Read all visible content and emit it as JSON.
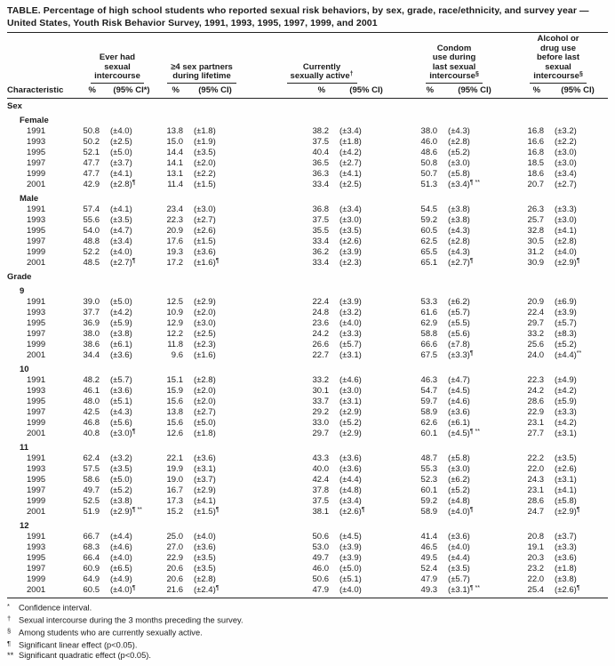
{
  "title": "TABLE.  Percentage of high school students who reported sexual risk behaviors, by sex, grade, race/ethnicity, and survey year —\nUnited States, Youth Risk Behavior Survey, 1991, 1993, 1995, 1997, 1999,  and 2001",
  "table": {
    "characteristic_label": "Characteristic",
    "groups": [
      {
        "label": "Ever had\nsexual\nintercourse",
        "sup": "",
        "pct_label": "%",
        "ci_label": "(95% CI*)"
      },
      {
        "label": "≥4 sex partners\nduring lifetime",
        "sup": "",
        "pct_label": "%",
        "ci_label": "(95% CI)"
      },
      {
        "label": "Currently\nsexually active",
        "sup": "†",
        "pct_label": "%",
        "ci_label": "(95% CI)"
      },
      {
        "label": "Condom\nuse during\nlast sexual\nintercourse",
        "sup": "§",
        "pct_label": "%",
        "ci_label": "(95% CI)"
      },
      {
        "label": "Alcohol or\ndrug use\nbefore last\nsexual\nintercourse",
        "sup": "§",
        "pct_label": "%",
        "ci_label": "(95% CI)"
      }
    ],
    "sections": [
      {
        "label": "Sex",
        "subsections": [
          {
            "label": "Female",
            "rows": [
              {
                "year": "1991",
                "cells": [
                  "50.8",
                  "(±4.0)",
                  "13.8",
                  "(±1.8)",
                  "38.2",
                  "(±3.4)",
                  "38.0",
                  "(±4.3)",
                  "16.8",
                  "(±3.2)"
                ]
              },
              {
                "year": "1993",
                "cells": [
                  "50.2",
                  "(±2.5)",
                  "15.0",
                  "(±1.9)",
                  "37.5",
                  "(±1.8)",
                  "46.0",
                  "(±2.8)",
                  "16.6",
                  "(±2.2)"
                ]
              },
              {
                "year": "1995",
                "cells": [
                  "52.1",
                  "(±5.0)",
                  "14.4",
                  "(±3.5)",
                  "40.4",
                  "(±4.2)",
                  "48.6",
                  "(±5.2)",
                  "16.8",
                  "(±3.0)"
                ]
              },
              {
                "year": "1997",
                "cells": [
                  "47.7",
                  "(±3.7)",
                  "14.1",
                  "(±2.0)",
                  "36.5",
                  "(±2.7)",
                  "50.8",
                  "(±3.0)",
                  "18.5",
                  "(±3.0)"
                ]
              },
              {
                "year": "1999",
                "cells": [
                  "47.7",
                  "(±4.1)",
                  "13.1",
                  "(±2.2)",
                  "36.3",
                  "(±4.1)",
                  "50.7",
                  "(±5.8)",
                  "18.6",
                  "(±3.4)"
                ]
              },
              {
                "year": "2001",
                "cells": [
                  "42.9",
                  "(±2.8)¶",
                  "11.4",
                  "(±1.5)",
                  "33.4",
                  "(±2.5)",
                  "51.3",
                  "(±3.4)¶ **",
                  "20.7",
                  "(±2.7)"
                ]
              }
            ]
          },
          {
            "label": "Male",
            "rows": [
              {
                "year": "1991",
                "cells": [
                  "57.4",
                  "(±4.1)",
                  "23.4",
                  "(±3.0)",
                  "36.8",
                  "(±3.4)",
                  "54.5",
                  "(±3.8)",
                  "26.3",
                  "(±3.3)"
                ]
              },
              {
                "year": "1993",
                "cells": [
                  "55.6",
                  "(±3.5)",
                  "22.3",
                  "(±2.7)",
                  "37.5",
                  "(±3.0)",
                  "59.2",
                  "(±3.8)",
                  "25.7",
                  "(±3.0)"
                ]
              },
              {
                "year": "1995",
                "cells": [
                  "54.0",
                  "(±4.7)",
                  "20.9",
                  "(±2.6)",
                  "35.5",
                  "(±3.5)",
                  "60.5",
                  "(±4.3)",
                  "32.8",
                  "(±4.1)"
                ]
              },
              {
                "year": "1997",
                "cells": [
                  "48.8",
                  "(±3.4)",
                  "17.6",
                  "(±1.5)",
                  "33.4",
                  "(±2.6)",
                  "62.5",
                  "(±2.8)",
                  "30.5",
                  "(±2.8)"
                ]
              },
              {
                "year": "1999",
                "cells": [
                  "52.2",
                  "(±4.0)",
                  "19.3",
                  "(±3.6)",
                  "36.2",
                  "(±3.9)",
                  "65.5",
                  "(±4.3)",
                  "31.2",
                  "(±4.0)"
                ]
              },
              {
                "year": "2001",
                "cells": [
                  "48.5",
                  "(±2.7)¶",
                  "17.2",
                  "(±1.6)¶",
                  "33.4",
                  "(±2.3)",
                  "65.1",
                  "(±2.7)¶",
                  "30.9",
                  "(±2.9)¶"
                ]
              }
            ]
          }
        ]
      },
      {
        "label": "Grade",
        "subsections": [
          {
            "label": "9",
            "rows": [
              {
                "year": "1991",
                "cells": [
                  "39.0",
                  "(±5.0)",
                  "12.5",
                  "(±2.9)",
                  "22.4",
                  "(±3.9)",
                  "53.3",
                  "(±6.2)",
                  "20.9",
                  "(±6.9)"
                ]
              },
              {
                "year": "1993",
                "cells": [
                  "37.7",
                  "(±4.2)",
                  "10.9",
                  "(±2.0)",
                  "24.8",
                  "(±3.2)",
                  "61.6",
                  "(±5.7)",
                  "22.4",
                  "(±3.9)"
                ]
              },
              {
                "year": "1995",
                "cells": [
                  "36.9",
                  "(±5.9)",
                  "12.9",
                  "(±3.0)",
                  "23.6",
                  "(±4.0)",
                  "62.9",
                  "(±5.5)",
                  "29.7",
                  "(±5.7)"
                ]
              },
              {
                "year": "1997",
                "cells": [
                  "38.0",
                  "(±3.8)",
                  "12.2",
                  "(±2.5)",
                  "24.2",
                  "(±3.3)",
                  "58.8",
                  "(±5.6)",
                  "33.2",
                  "(±8.3)"
                ]
              },
              {
                "year": "1999",
                "cells": [
                  "38.6",
                  "(±6.1)",
                  "11.8",
                  "(±2.3)",
                  "26.6",
                  "(±5.7)",
                  "66.6",
                  "(±7.8)",
                  "25.6",
                  "(±5.2)"
                ]
              },
              {
                "year": "2001",
                "cells": [
                  "34.4",
                  "(±3.6)",
                  "9.6",
                  "(±1.6)",
                  "22.7",
                  "(±3.1)",
                  "67.5",
                  "(±3.3)¶",
                  "24.0",
                  "(±4.4)**"
                ]
              }
            ]
          },
          {
            "label": "10",
            "rows": [
              {
                "year": "1991",
                "cells": [
                  "48.2",
                  "(±5.7)",
                  "15.1",
                  "(±2.8)",
                  "33.2",
                  "(±4.6)",
                  "46.3",
                  "(±4.7)",
                  "22.3",
                  "(±4.9)"
                ]
              },
              {
                "year": "1993",
                "cells": [
                  "46.1",
                  "(±3.6)",
                  "15.9",
                  "(±2.0)",
                  "30.1",
                  "(±3.0)",
                  "54.7",
                  "(±4.5)",
                  "24.2",
                  "(±4.2)"
                ]
              },
              {
                "year": "1995",
                "cells": [
                  "48.0",
                  "(±5.1)",
                  "15.6",
                  "(±2.0)",
                  "33.7",
                  "(±3.1)",
                  "59.7",
                  "(±4.6)",
                  "28.6",
                  "(±5.9)"
                ]
              },
              {
                "year": "1997",
                "cells": [
                  "42.5",
                  "(±4.3)",
                  "13.8",
                  "(±2.7)",
                  "29.2",
                  "(±2.9)",
                  "58.9",
                  "(±3.6)",
                  "22.9",
                  "(±3.3)"
                ]
              },
              {
                "year": "1999",
                "cells": [
                  "46.8",
                  "(±5.6)",
                  "15.6",
                  "(±5.0)",
                  "33.0",
                  "(±5.2)",
                  "62.6",
                  "(±6.1)",
                  "23.1",
                  "(±4.2)"
                ]
              },
              {
                "year": "2001",
                "cells": [
                  "40.8",
                  "(±3.0)¶",
                  "12.6",
                  "(±1.8)",
                  "29.7",
                  "(±2.9)",
                  "60.1",
                  "(±4.5)¶ **",
                  "27.7",
                  "(±3.1)"
                ]
              }
            ]
          },
          {
            "label": "11",
            "rows": [
              {
                "year": "1991",
                "cells": [
                  "62.4",
                  "(±3.2)",
                  "22.1",
                  "(±3.6)",
                  "43.3",
                  "(±3.6)",
                  "48.7",
                  "(±5.8)",
                  "22.2",
                  "(±3.5)"
                ]
              },
              {
                "year": "1993",
                "cells": [
                  "57.5",
                  "(±3.5)",
                  "19.9",
                  "(±3.1)",
                  "40.0",
                  "(±3.6)",
                  "55.3",
                  "(±3.0)",
                  "22.0",
                  "(±2.6)"
                ]
              },
              {
                "year": "1995",
                "cells": [
                  "58.6",
                  "(±5.0)",
                  "19.0",
                  "(±3.7)",
                  "42.4",
                  "(±4.4)",
                  "52.3",
                  "(±6.2)",
                  "24.3",
                  "(±3.1)"
                ]
              },
              {
                "year": "1997",
                "cells": [
                  "49.7",
                  "(±5.2)",
                  "16.7",
                  "(±2.9)",
                  "37.8",
                  "(±4.8)",
                  "60.1",
                  "(±5.2)",
                  "23.1",
                  "(±4.1)"
                ]
              },
              {
                "year": "1999",
                "cells": [
                  "52.5",
                  "(±3.8)",
                  "17.3",
                  "(±4.1)",
                  "37.5",
                  "(±3.4)",
                  "59.2",
                  "(±4.8)",
                  "28.6",
                  "(±5.8)"
                ]
              },
              {
                "year": "2001",
                "cells": [
                  "51.9",
                  "(±2.9)¶ **",
                  "15.2",
                  "(±1.5)¶",
                  "38.1",
                  "(±2.6)¶",
                  "58.9",
                  "(±4.0)¶",
                  "24.7",
                  "(±2.9)¶"
                ]
              }
            ]
          },
          {
            "label": "12",
            "rows": [
              {
                "year": "1991",
                "cells": [
                  "66.7",
                  "(±4.4)",
                  "25.0",
                  "(±4.0)",
                  "50.6",
                  "(±4.5)",
                  "41.4",
                  "(±3.6)",
                  "20.8",
                  "(±3.7)"
                ]
              },
              {
                "year": "1993",
                "cells": [
                  "68.3",
                  "(±4.6)",
                  "27.0",
                  "(±3.6)",
                  "53.0",
                  "(±3.9)",
                  "46.5",
                  "(±4.0)",
                  "19.1",
                  "(±3.3)"
                ]
              },
              {
                "year": "1995",
                "cells": [
                  "66.4",
                  "(±4.0)",
                  "22.9",
                  "(±3.5)",
                  "49.7",
                  "(±3.9)",
                  "49.5",
                  "(±4.4)",
                  "20.3",
                  "(±3.6)"
                ]
              },
              {
                "year": "1997",
                "cells": [
                  "60.9",
                  "(±6.5)",
                  "20.6",
                  "(±3.5)",
                  "46.0",
                  "(±5.0)",
                  "52.4",
                  "(±3.5)",
                  "23.2",
                  "(±1.8)"
                ]
              },
              {
                "year": "1999",
                "cells": [
                  "64.9",
                  "(±4.9)",
                  "20.6",
                  "(±2.8)",
                  "50.6",
                  "(±5.1)",
                  "47.9",
                  "(±5.7)",
                  "22.0",
                  "(±3.8)"
                ]
              },
              {
                "year": "2001",
                "cells": [
                  "60.5",
                  "(±4.0)¶",
                  "21.6",
                  "(±2.4)¶",
                  "47.9",
                  "(±4.0)",
                  "49.3",
                  "(±3.1)¶ **",
                  "25.4",
                  "(±2.6)¶"
                ]
              }
            ]
          }
        ]
      }
    ],
    "footnotes": [
      {
        "marker": "*",
        "text": "Confidence interval."
      },
      {
        "marker": "†",
        "text": "Sexual intercourse during the 3 months preceding the survey."
      },
      {
        "marker": "§",
        "text": "Among students who are currently sexually active."
      },
      {
        "marker": "¶",
        "text": "Significant linear effect (p<0.05)."
      },
      {
        "marker": "**",
        "text": "Significant quadratic effect (p<0.05)."
      }
    ]
  }
}
